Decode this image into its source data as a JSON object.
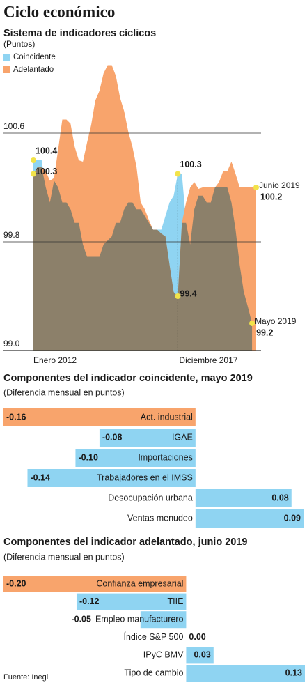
{
  "title": "Ciclo económico",
  "source": "Fuente: Inegi",
  "chart_data": [
    {
      "type": "area",
      "subtitle": "Sistema de indicadores cíclicos",
      "y_label": "(Puntos)",
      "categories": [
        "Enero 2012",
        null,
        null,
        null,
        null,
        null,
        null,
        null,
        null,
        null,
        null,
        null,
        null,
        null,
        null,
        null,
        null,
        null,
        null,
        null,
        null,
        null,
        null,
        null,
        null,
        null,
        null,
        null,
        null,
        null,
        null,
        null,
        null,
        null,
        null,
        "Diciembre 2017",
        null,
        null,
        null,
        null,
        null,
        null,
        null,
        null,
        null,
        null,
        null,
        null,
        null,
        null,
        null,
        null,
        null,
        null,
        null
      ],
      "series": [
        {
          "name": "Coincidente",
          "color": "#8fd4f2",
          "values": [
            100.4,
            100.4,
            100.4,
            100.2,
            100.09,
            100.25,
            100.2,
            100.09,
            100.09,
            100.04,
            99.94,
            99.94,
            99.78,
            99.69,
            99.69,
            99.69,
            99.69,
            99.78,
            99.81,
            99.84,
            99.94,
            99.94,
            100.04,
            100.09,
            100.09,
            100.04,
            100.04,
            99.99,
            99.94,
            99.89,
            99.89,
            99.89,
            99.99,
            100.09,
            100.14,
            100.3,
            100.3,
            99.94,
            99.78,
            100.04,
            100.14,
            100.14,
            100.09,
            100.09,
            100.2,
            100.2,
            100.2,
            100.2,
            100.09,
            99.89,
            99.63,
            99.43,
            99.32,
            99.2,
            null
          ],
          "value_labels": [
            "100.4",
            null,
            null,
            null,
            null,
            null,
            null,
            null,
            null,
            null,
            null,
            null,
            null,
            null,
            null,
            null,
            null,
            null,
            null,
            null,
            null,
            null,
            null,
            null,
            null,
            null,
            null,
            null,
            null,
            null,
            null,
            null,
            null,
            null,
            null,
            "100.3",
            null,
            null,
            null,
            null,
            null,
            null,
            null,
            null,
            null,
            null,
            null,
            null,
            null,
            null,
            null,
            null,
            null,
            "99.2",
            null
          ],
          "end_label": "Mayo 2019"
        },
        {
          "name": "Adelantado",
          "color": "#f8a46c",
          "values": [
            100.3,
            100.35,
            100.35,
            100.32,
            100.25,
            100.27,
            100.48,
            100.7,
            100.7,
            100.67,
            100.5,
            100.4,
            100.39,
            100.53,
            100.66,
            100.84,
            100.91,
            101.04,
            101.1,
            101.1,
            101.02,
            100.86,
            100.76,
            100.61,
            100.5,
            100.35,
            100.09,
            100.04,
            99.96,
            99.89,
            99.89,
            99.86,
            99.84,
            99.63,
            99.43,
            99.4,
            99.94,
            100.09,
            100.2,
            100.24,
            100.19,
            100.2,
            100.2,
            100.2,
            100.2,
            100.24,
            100.32,
            100.32,
            100.39,
            100.3,
            100.2,
            100.2,
            100.2,
            100.2,
            100.2
          ],
          "value_labels": [
            "100.3",
            null,
            null,
            null,
            null,
            null,
            null,
            null,
            null,
            null,
            null,
            null,
            null,
            null,
            null,
            null,
            null,
            null,
            null,
            null,
            null,
            null,
            null,
            null,
            null,
            null,
            null,
            null,
            null,
            null,
            null,
            null,
            null,
            null,
            null,
            "99.4",
            null,
            null,
            null,
            null,
            null,
            null,
            null,
            null,
            null,
            null,
            null,
            null,
            null,
            null,
            null,
            null,
            null,
            null,
            "100.2"
          ],
          "end_label": "Junio 2019"
        }
      ],
      "overlap_color": "#8c806a",
      "point_color": "#f2e34a",
      "ylim": [
        99,
        101.2
      ],
      "yticks": [
        {
          "value": 99,
          "label": "99.0"
        },
        99.8,
        100.6
      ],
      "grid": true,
      "legend": "top-left"
    },
    {
      "type": "bar",
      "orientation": "horizontal",
      "title": "Componentes del indicador coincidente, mayo 2019",
      "subtitle": "(Diferencia mensual en puntos)",
      "categories": [
        "Act. industrial",
        "IGAE",
        "Importaciones",
        "Trabajadores en el IMSS",
        "Desocupación urbana",
        "Ventas menudeo"
      ],
      "values": [
        -0.16,
        -0.08,
        -0.1,
        -0.14,
        0.08,
        0.09
      ],
      "colors": [
        "#f8a46c",
        "#8fd4f2",
        "#8fd4f2",
        "#8fd4f2",
        "#8fd4f2",
        "#8fd4f2"
      ],
      "xlim": [
        -0.16,
        0.09
      ]
    },
    {
      "type": "bar",
      "orientation": "horizontal",
      "title": "Componentes del indicador adelantado, junio 2019",
      "subtitle": "(Diferencia mensual en puntos)",
      "categories": [
        "Confianza empresarial",
        "TIIE",
        "Empleo manufacturero",
        "Índice S&P 500",
        "IPyC BMV",
        "Tipo de cambio"
      ],
      "values": [
        -0.2,
        -0.12,
        -0.05,
        0.0,
        0.03,
        0.13
      ],
      "colors": [
        "#f8a46c",
        "#8fd4f2",
        "#8fd4f2",
        "#8fd4f2",
        "#8fd4f2",
        "#8fd4f2"
      ],
      "xlim": [
        -0.2,
        0.13
      ]
    }
  ]
}
